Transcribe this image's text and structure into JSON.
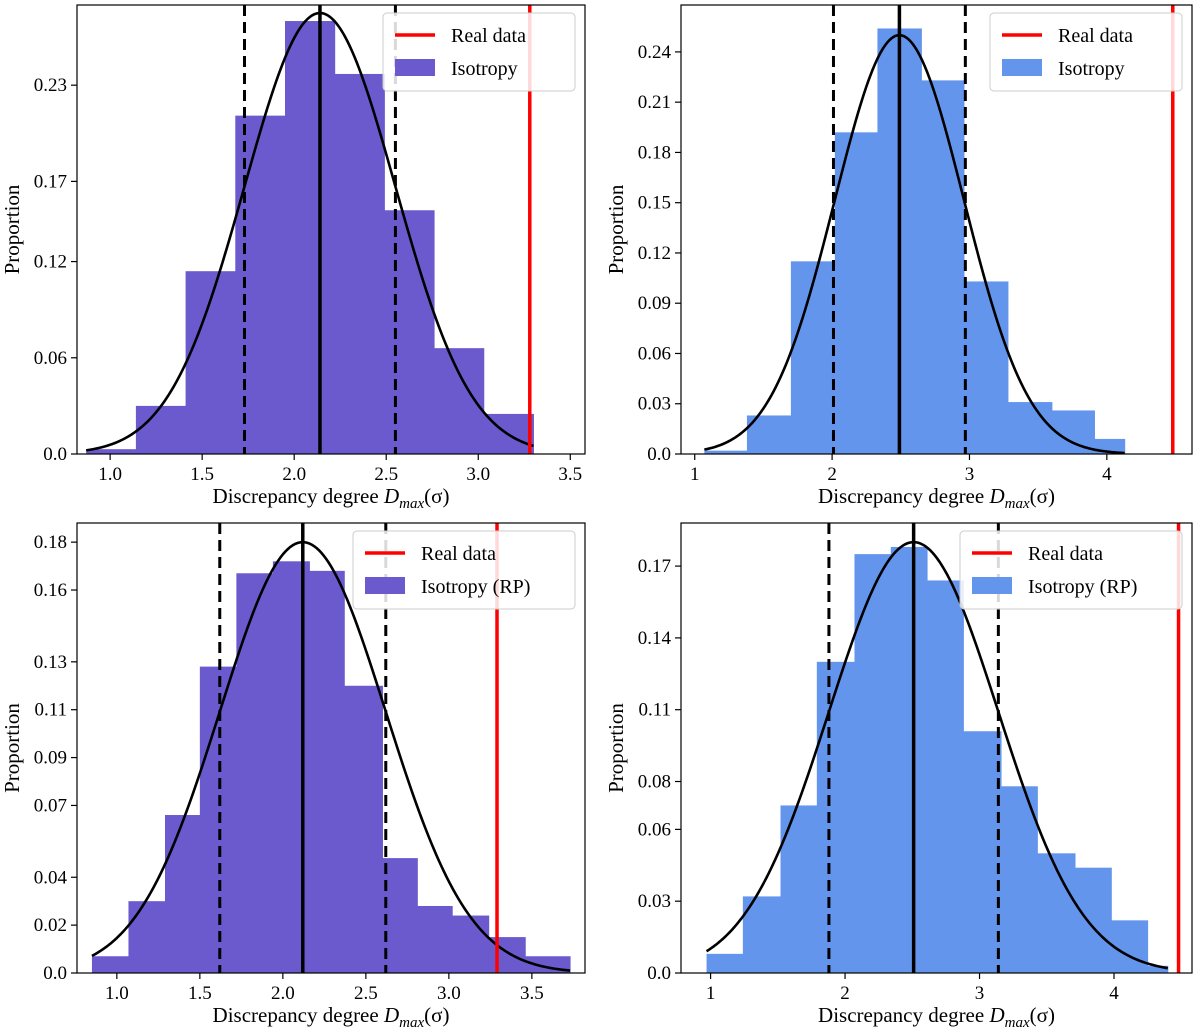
{
  "chart_data": [
    {
      "type": "histogram",
      "panel": "top-left",
      "xlabel_prefix": "Discrepancy degree ",
      "xlabel_var": "D",
      "xlabel_sub": "max",
      "xlabel_arg": "(σ)",
      "ylabel": "Proportion",
      "xlim": [
        0.82,
        3.58
      ],
      "ylim": [
        0,
        0.28
      ],
      "xticks": [
        1.0,
        1.5,
        2.0,
        2.5,
        3.0,
        3.5
      ],
      "xtick_labels": [
        "1.0",
        "1.5",
        "2.0",
        "2.5",
        "3.0",
        "3.5"
      ],
      "yticks": [
        0.0,
        0.06,
        0.12,
        0.17,
        0.23
      ],
      "ytick_labels": [
        "0.0",
        "0.06",
        "0.12",
        "0.17",
        "0.23"
      ],
      "bar_color": "#6a5acd",
      "bins": [
        0.87,
        1.14,
        1.41,
        1.68,
        1.95,
        2.22,
        2.49,
        2.76,
        3.03,
        3.3
      ],
      "values": [
        0.003,
        0.03,
        0.114,
        0.211,
        0.27,
        0.237,
        0.152,
        0.066,
        0.025
      ],
      "fit": {
        "type": "gaussian",
        "mean": 2.14,
        "sigma": 0.41,
        "peak": 0.275
      },
      "mean_line": 2.14,
      "sigma_lines": [
        1.73,
        2.55
      ],
      "real_data_line": 3.28,
      "real_data_color": "#ff0000",
      "legend": {
        "position": "top-right",
        "real_data": "Real data",
        "sim": "Isotropy"
      }
    },
    {
      "type": "histogram",
      "panel": "top-right",
      "xlabel_prefix": "Discrepancy degree ",
      "xlabel_var": "D",
      "xlabel_sub": "max",
      "xlabel_arg": "(σ)",
      "ylabel": "Proportion",
      "xlim": [
        0.9,
        4.62
      ],
      "ylim": [
        0,
        0.268
      ],
      "xticks": [
        1,
        2,
        3,
        4
      ],
      "xtick_labels": [
        "1",
        "2",
        "3",
        "4"
      ],
      "yticks": [
        0.0,
        0.03,
        0.06,
        0.09,
        0.12,
        0.15,
        0.18,
        0.21,
        0.24
      ],
      "ytick_labels": [
        "0.0",
        "0.03",
        "0.06",
        "0.09",
        "0.12",
        "0.15",
        "0.18",
        "0.21",
        "0.24"
      ],
      "bar_color": "#6495ed",
      "bins": [
        1.07,
        1.38,
        1.7,
        2.02,
        2.33,
        2.65,
        2.96,
        3.28,
        3.6,
        3.91,
        4.13
      ],
      "values": [
        0.002,
        0.023,
        0.115,
        0.192,
        0.254,
        0.223,
        0.103,
        0.031,
        0.026,
        0.009
      ],
      "fit": {
        "type": "gaussian",
        "mean": 2.49,
        "sigma": 0.47,
        "peak": 0.25
      },
      "mean_line": 2.49,
      "sigma_lines": [
        2.01,
        2.97
      ],
      "real_data_line": 4.48,
      "real_data_color": "#ff0000",
      "legend": {
        "position": "top-right",
        "real_data": "Real data",
        "sim": "Isotropy"
      }
    },
    {
      "type": "histogram",
      "panel": "bottom-left",
      "xlabel_prefix": "Discrepancy degree ",
      "xlabel_var": "D",
      "xlabel_sub": "max",
      "xlabel_arg": "(σ)",
      "ylabel": "Proportion",
      "xlim": [
        0.76,
        3.82
      ],
      "ylim": [
        0,
        0.188
      ],
      "xticks": [
        1.0,
        1.5,
        2.0,
        2.5,
        3.0,
        3.5
      ],
      "xtick_labels": [
        "1.0",
        "1.5",
        "2.0",
        "2.5",
        "3.0",
        "3.5"
      ],
      "yticks": [
        0.0,
        0.02,
        0.04,
        0.07,
        0.09,
        0.11,
        0.13,
        0.16,
        0.18
      ],
      "ytick_labels": [
        "0.0",
        "0.02",
        "0.04",
        "0.07",
        "0.09",
        "0.11",
        "0.13",
        "0.16",
        "0.18"
      ],
      "bar_color": "#6a5acd",
      "bins": [
        0.85,
        1.07,
        1.29,
        1.5,
        1.72,
        1.94,
        2.16,
        2.37,
        2.6,
        2.81,
        3.02,
        3.24,
        3.46,
        3.73
      ],
      "values": [
        0.007,
        0.03,
        0.066,
        0.128,
        0.167,
        0.172,
        0.168,
        0.12,
        0.048,
        0.028,
        0.024,
        0.015,
        0.007
      ],
      "fit": {
        "type": "gaussian",
        "mean": 2.12,
        "sigma": 0.5,
        "peak": 0.18
      },
      "mean_line": 2.12,
      "sigma_lines": [
        1.62,
        2.62
      ],
      "real_data_line": 3.29,
      "real_data_color": "#ff0000",
      "legend": {
        "position": "top-right",
        "real_data": "Real data",
        "sim": "Isotropy (RP)"
      }
    },
    {
      "type": "histogram",
      "panel": "bottom-right",
      "xlabel_prefix": "Discrepancy degree ",
      "xlabel_var": "D",
      "xlabel_sub": "max",
      "xlabel_arg": "(σ)",
      "ylabel": "Proportion",
      "xlim": [
        0.78,
        4.58
      ],
      "ylim": [
        0,
        0.188
      ],
      "xticks": [
        1,
        2,
        3,
        4
      ],
      "xtick_labels": [
        "1",
        "2",
        "3",
        "4"
      ],
      "yticks": [
        0.0,
        0.03,
        0.06,
        0.08,
        0.11,
        0.14,
        0.17
      ],
      "ytick_labels": [
        "0.0",
        "0.03",
        "0.06",
        "0.08",
        "0.11",
        "0.14",
        "0.17"
      ],
      "bar_color": "#6495ed",
      "bins": [
        0.97,
        1.24,
        1.52,
        1.79,
        2.07,
        2.34,
        2.61,
        2.88,
        3.16,
        3.43,
        3.71,
        3.98,
        4.25,
        4.4
      ],
      "values": [
        0.008,
        0.032,
        0.07,
        0.13,
        0.175,
        0.178,
        0.164,
        0.101,
        0.078,
        0.05,
        0.044,
        0.022,
        0.003
      ],
      "fit": {
        "type": "gaussian",
        "mean": 2.51,
        "sigma": 0.63,
        "peak": 0.18
      },
      "mean_line": 2.51,
      "sigma_lines": [
        1.88,
        3.14
      ],
      "real_data_line": 4.48,
      "real_data_color": "#ff0000",
      "legend": {
        "position": "top-right",
        "real_data": "Real data",
        "sim": "Isotropy (RP)"
      }
    }
  ]
}
